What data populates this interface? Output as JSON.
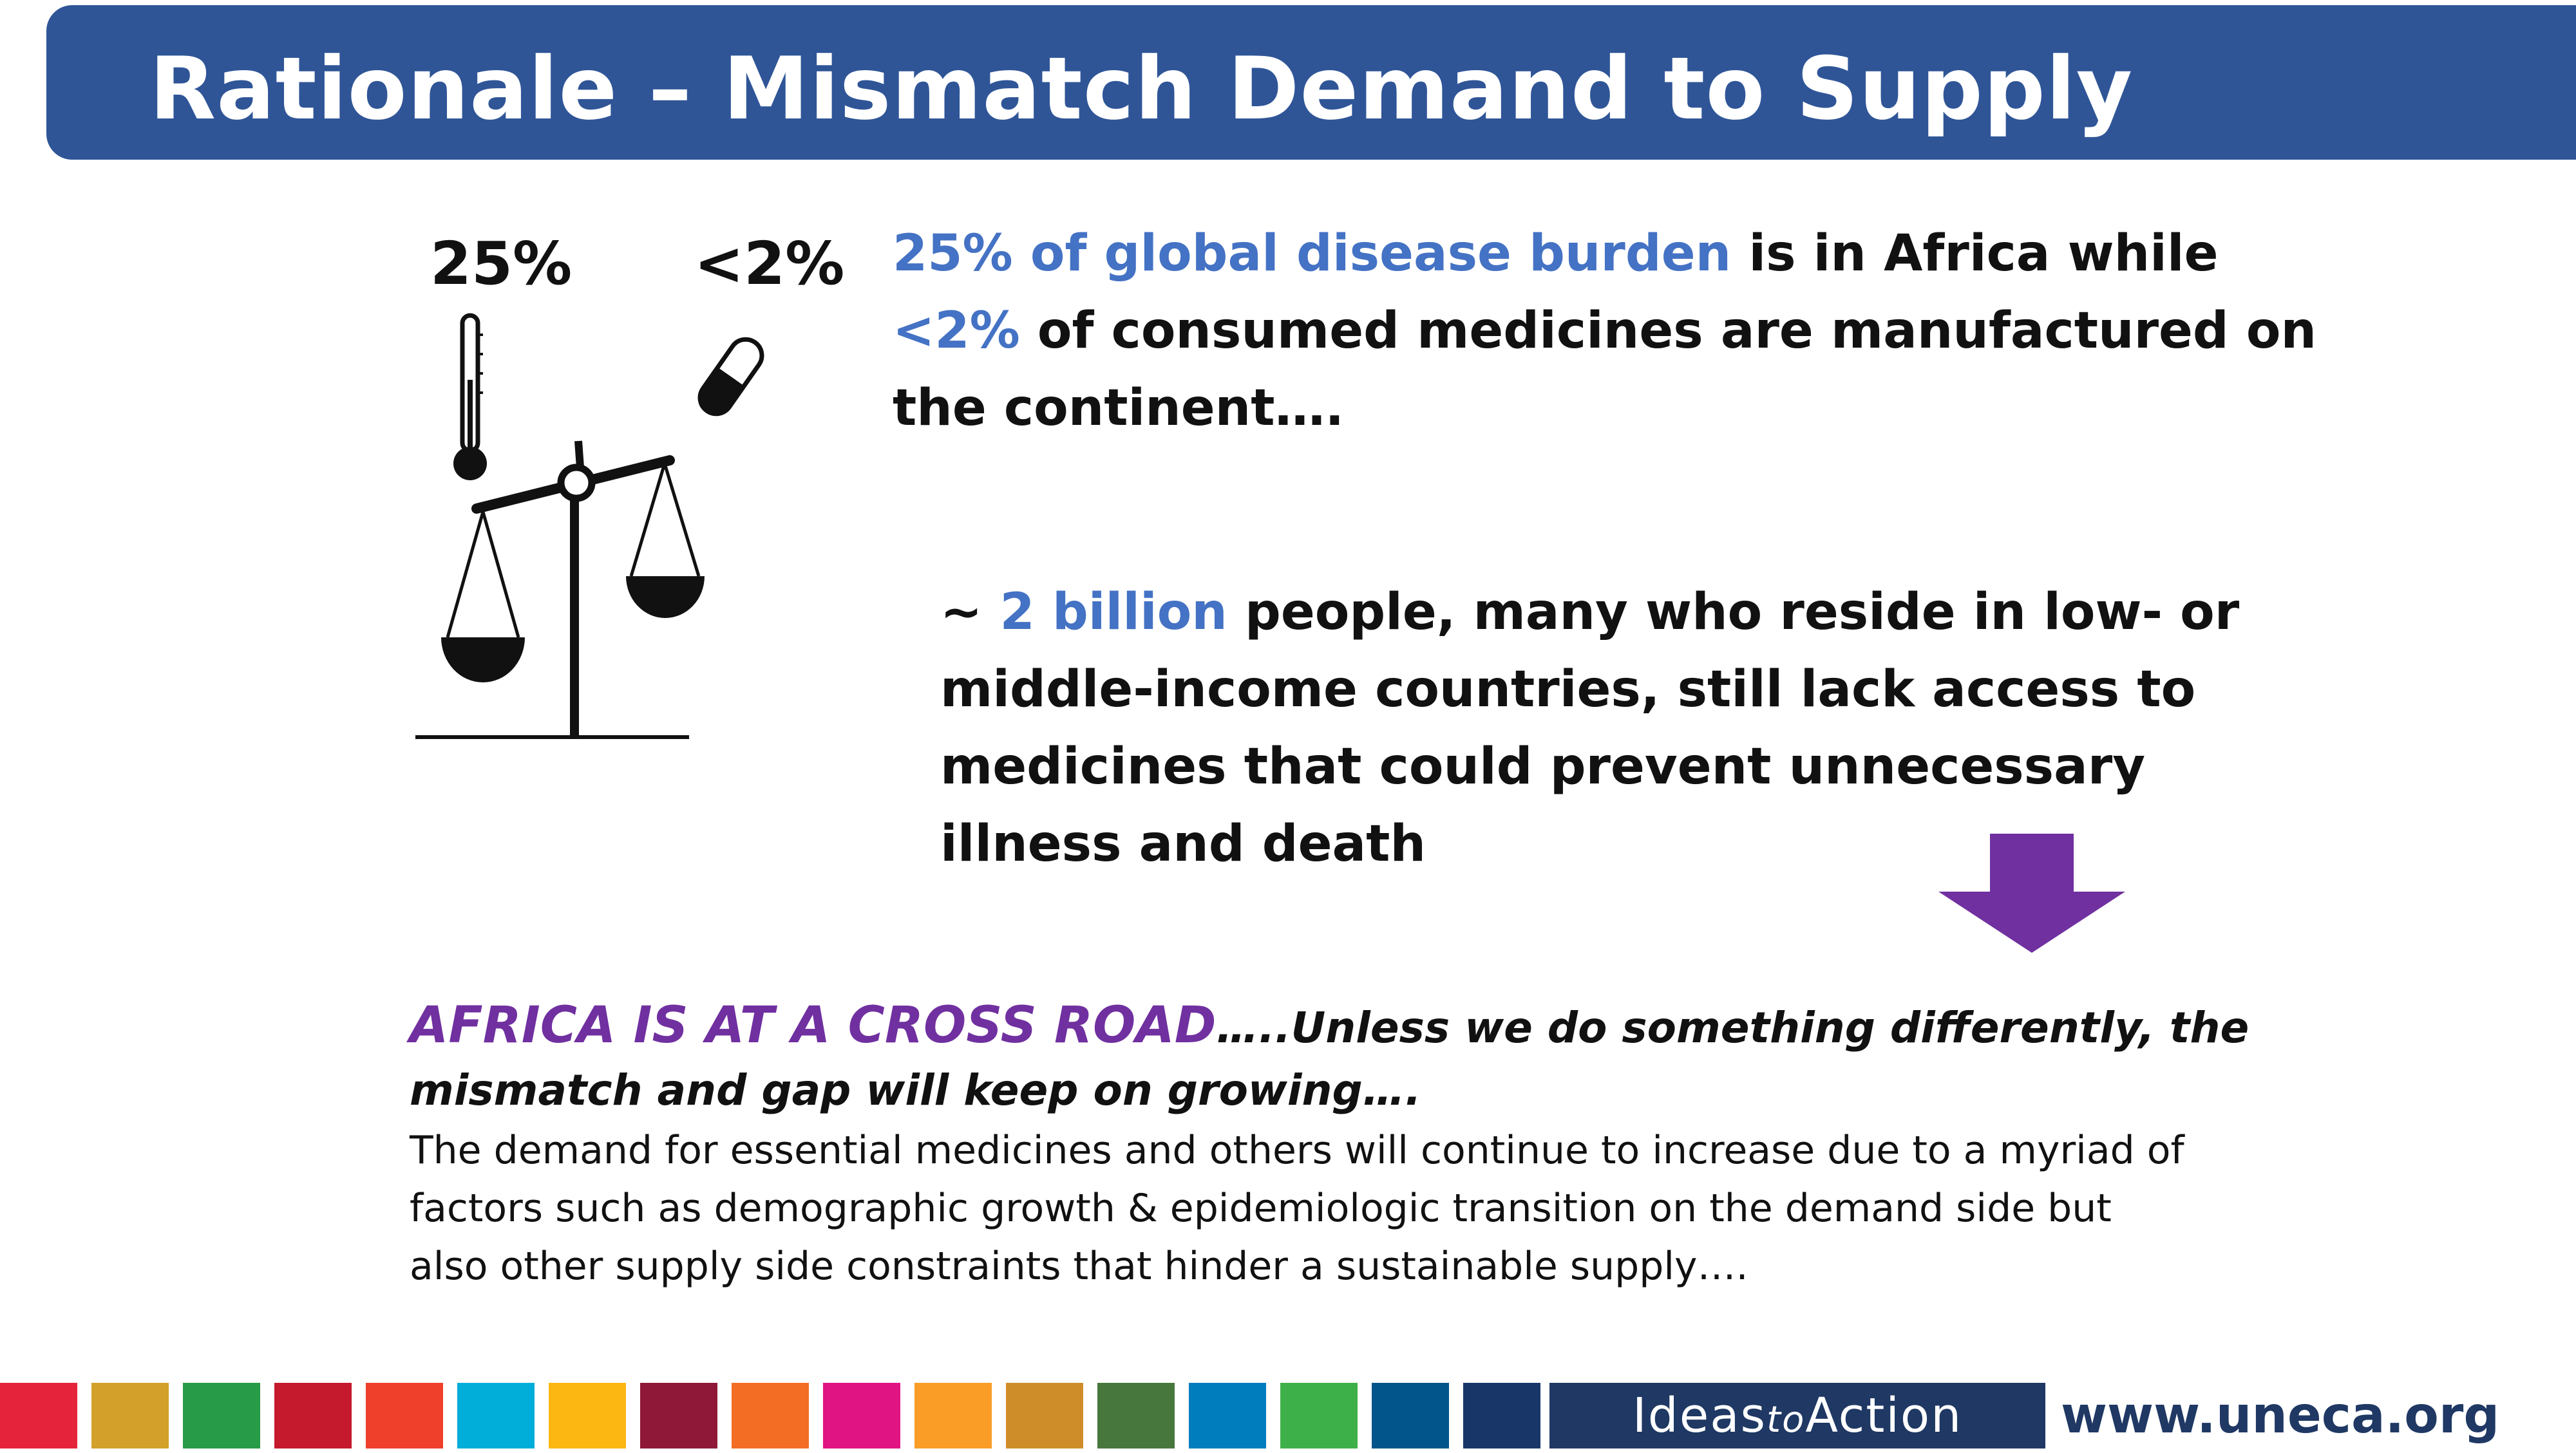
{
  "slide": {
    "title": "Rationale – Mismatch Demand to Supply"
  },
  "illustration": {
    "left_pct": "25%",
    "right_pct": "<2%",
    "icons": [
      "thermometer-icon",
      "pill-icon",
      "balance-scale-icon"
    ]
  },
  "para1": {
    "line1_highlight": "25% of global disease burden",
    "line1_rest": " is in Africa while",
    "line2_highlight": "<2%",
    "line2_rest": " of consumed medicines are manufactured on",
    "line3": "the continent…."
  },
  "para2": {
    "line1_prefix": "~ ",
    "line1_highlight": "2 billion",
    "line1_rest": " people, many who reside in low- or",
    "line2": "middle-income countries, still lack access to",
    "line3": "medicines that could prevent unnecessary",
    "line4": "illness and death"
  },
  "cross_road": {
    "headline": "AFRICA IS AT A CROSS ROAD",
    "tail": "…..Unless we do something differently, the",
    "line2": "mismatch and gap will keep on growing…."
  },
  "body": {
    "line1": "The demand for essential medicines and others will continue to increase due to a myriad of",
    "line2": "factors such as demographic growth & epidemiologic transition on the demand side but",
    "line3": "also other supply side constraints that hinder a sustainable supply…."
  },
  "footer": {
    "brand_main1": "Ideas",
    "brand_small": "to",
    "brand_main2": "Action",
    "url": "www.uneca.org",
    "sdg_colors": [
      "#e5243b",
      "#d3a029",
      "#279b48",
      "#c5192d",
      "#ef402b",
      "#00aed9",
      "#fdb713",
      "#8f1838",
      "#f36d25",
      "#e11484",
      "#f99d26",
      "#cf8d2a",
      "#48773e",
      "#007dbc",
      "#3eb049",
      "#02558b",
      "#183668"
    ]
  },
  "colors": {
    "title_bar": "#2f5597",
    "highlight_blue": "#4472c4",
    "headline_purple": "#7030a0",
    "arrow_purple": "#7030a0"
  }
}
